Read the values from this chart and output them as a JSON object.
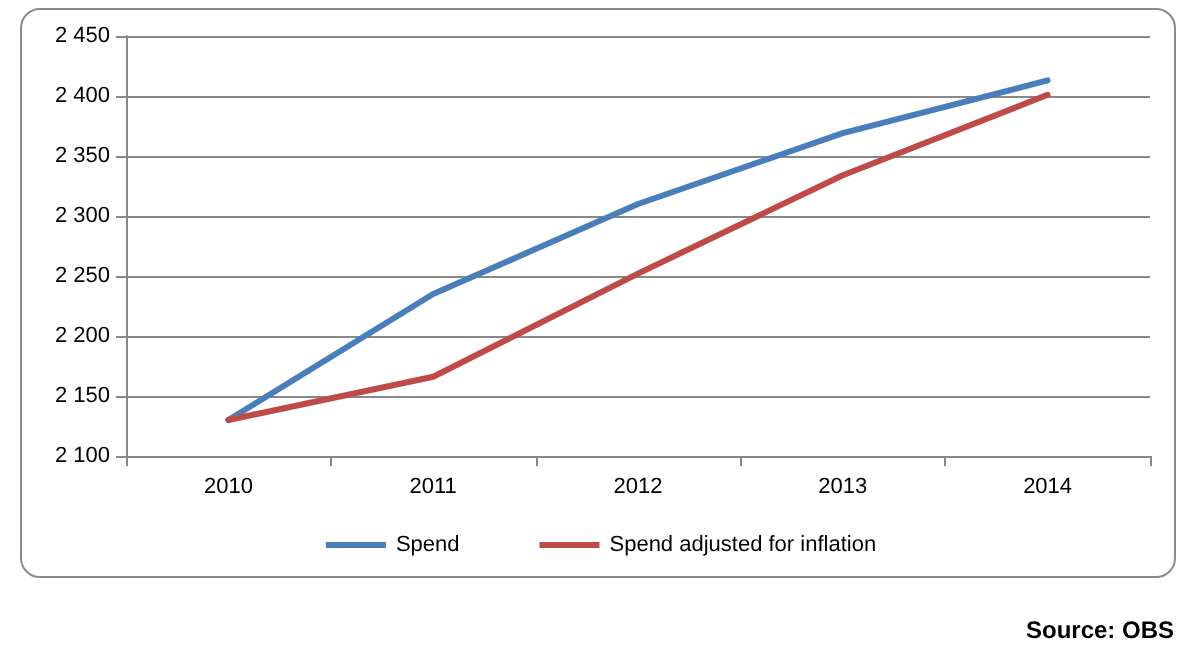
{
  "chart_data": {
    "type": "line",
    "categories": [
      "2010",
      "2011",
      "2012",
      "2013",
      "2014"
    ],
    "series": [
      {
        "name": "Spend",
        "color": "#4a7ebb",
        "values": [
          2130,
          2235,
          2310,
          2369,
          2413
        ]
      },
      {
        "name": "Spend adjusted for inflation",
        "color": "#be4b48",
        "values": [
          2130,
          2166,
          2252,
          2334,
          2401
        ]
      }
    ],
    "ylim": [
      2100,
      2450
    ],
    "yticks": [
      {
        "value": 2100,
        "label": "2 100"
      },
      {
        "value": 2150,
        "label": "2 150"
      },
      {
        "value": 2200,
        "label": "2 200"
      },
      {
        "value": 2250,
        "label": "2 250"
      },
      {
        "value": 2300,
        "label": "2 300"
      },
      {
        "value": 2350,
        "label": "2 350"
      },
      {
        "value": 2400,
        "label": "2 400"
      },
      {
        "value": 2450,
        "label": "2 450"
      }
    ],
    "grid": "y",
    "legend": "bottom",
    "marker": "none",
    "line_style": "solid",
    "annotations": [
      "Source: OBS"
    ]
  }
}
